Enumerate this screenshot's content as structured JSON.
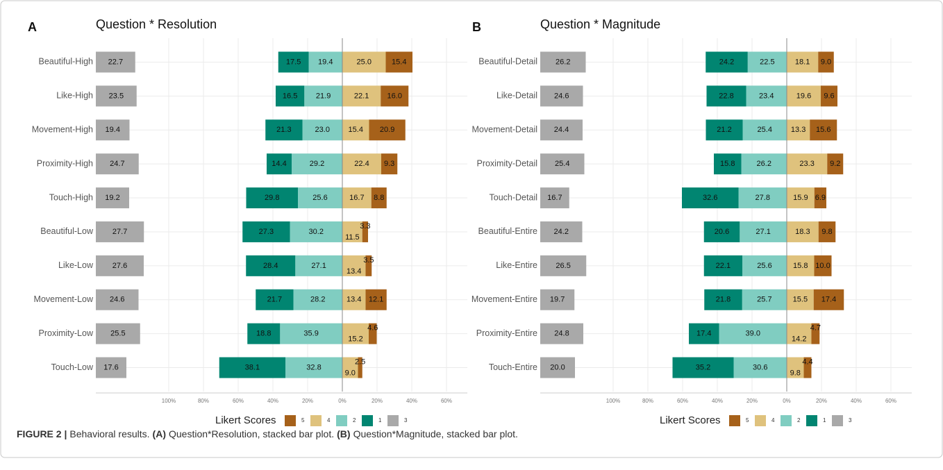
{
  "chart_data": [
    {
      "type": "diverging_bar",
      "panel": "A",
      "title": "Question * Resolution",
      "categories": [
        "Beautiful-High",
        "Like-High",
        "Movement-High",
        "Proximity-High",
        "Touch-High",
        "Beautiful-Low",
        "Like-Low",
        "Movement-Low",
        "Proximity-Low",
        "Touch-Low"
      ],
      "series": [
        {
          "name": "5",
          "color": "#a6611a",
          "values": [
            15.4,
            16.0,
            20.9,
            9.3,
            8.8,
            3.3,
            3.5,
            12.1,
            4.6,
            2.5
          ],
          "value_labels": [
            "15.4",
            "16.0",
            "20.9",
            "9.3",
            "8.8",
            "3.3",
            "3.5",
            "12.1",
            "4.6",
            "2.5"
          ]
        },
        {
          "name": "4",
          "color": "#dfc27d",
          "values": [
            25.0,
            22.1,
            15.4,
            22.4,
            16.7,
            11.5,
            13.4,
            13.4,
            15.2,
            9.0
          ],
          "value_labels": [
            "25.0",
            "22.1",
            "15.4",
            "22.4",
            "16.7",
            "11.5",
            "13.4",
            "13.4",
            "15.2",
            "9.0"
          ]
        },
        {
          "name": "2",
          "color": "#80cdc1",
          "values": [
            19.4,
            21.9,
            23.0,
            29.2,
            25.6,
            30.2,
            27.1,
            28.2,
            35.9,
            32.8
          ],
          "value_labels": [
            "19.4",
            "21.9",
            "23.0",
            "29.2",
            "25.6",
            "30.2",
            "27.1",
            "28.2",
            "35.9",
            "32.8"
          ]
        },
        {
          "name": "1",
          "color": "#018571",
          "values": [
            17.5,
            16.5,
            21.3,
            14.4,
            29.8,
            27.3,
            28.4,
            21.7,
            18.8,
            38.1
          ],
          "value_labels": [
            "17.5",
            "16.5",
            "21.3",
            "14.4",
            "29.8",
            "27.3",
            "28.4",
            "21.7",
            "18.8",
            "38.1"
          ]
        },
        {
          "name": "3",
          "color": "#a9a9a9",
          "values": [
            22.7,
            23.5,
            19.4,
            24.7,
            19.2,
            27.7,
            27.6,
            24.6,
            25.5,
            17.6
          ],
          "value_labels": [
            "22.7",
            "23.5",
            "19.4",
            "24.7",
            "19.2",
            "27.7",
            "27.6",
            "24.6",
            "25.5",
            "17.6"
          ]
        }
      ],
      "xlim": [
        -142,
        72
      ],
      "xticks": [
        {
          "value": -100,
          "label": "100%"
        },
        {
          "value": -80,
          "label": "80%"
        },
        {
          "value": -60,
          "label": "60%"
        },
        {
          "value": -40,
          "label": "40%"
        },
        {
          "value": -20,
          "label": "20%"
        },
        {
          "value": 0,
          "label": "0%"
        },
        {
          "value": 20,
          "label": "20%"
        },
        {
          "value": 40,
          "label": "40%"
        },
        {
          "value": 60,
          "label": "60%"
        }
      ],
      "legend_title": "Likert Scores",
      "grid": true
    },
    {
      "type": "diverging_bar",
      "panel": "B",
      "title": "Question * Magnitude",
      "categories": [
        "Beautiful-Detail",
        "Like-Detail",
        "Movement-Detail",
        "Proximity-Detail",
        "Touch-Detail",
        "Beautiful-Entire",
        "Like-Entire",
        "Movement-Entire",
        "Proximity-Entire",
        "Touch-Entire"
      ],
      "series": [
        {
          "name": "5",
          "color": "#a6611a",
          "values": [
            9.0,
            9.6,
            15.6,
            9.2,
            6.9,
            9.8,
            10.0,
            17.4,
            4.7,
            4.4
          ],
          "value_labels": [
            "9.0",
            "9.6",
            "15.6",
            "9.2",
            "6.9",
            "9.8",
            "10.0",
            "17.4",
            "4.7",
            "4.4"
          ]
        },
        {
          "name": "4",
          "color": "#dfc27d",
          "values": [
            18.1,
            19.6,
            13.3,
            23.3,
            15.9,
            18.3,
            15.8,
            15.5,
            14.2,
            9.8
          ],
          "value_labels": [
            "18.1",
            "19.6",
            "13.3",
            "23.3",
            "15.9",
            "18.3",
            "15.8",
            "15.5",
            "14.2",
            "9.8"
          ]
        },
        {
          "name": "2",
          "color": "#80cdc1",
          "values": [
            22.5,
            23.4,
            25.4,
            26.2,
            27.8,
            27.1,
            25.6,
            25.7,
            39.0,
            30.6
          ],
          "value_labels": [
            "22.5",
            "23.4",
            "25.4",
            "26.2",
            "27.8",
            "27.1",
            "25.6",
            "25.7",
            "39.0",
            "30.6"
          ]
        },
        {
          "name": "1",
          "color": "#018571",
          "values": [
            24.2,
            22.8,
            21.2,
            15.8,
            32.6,
            20.6,
            22.1,
            21.8,
            17.4,
            35.2
          ],
          "value_labels": [
            "24.2",
            "22.8",
            "21.2",
            "15.8",
            "32.6",
            "20.6",
            "22.1",
            "21.8",
            "17.4",
            "35.2"
          ]
        },
        {
          "name": "3",
          "color": "#a9a9a9",
          "values": [
            26.2,
            24.6,
            24.4,
            25.4,
            16.7,
            24.2,
            26.5,
            19.7,
            24.8,
            20.0
          ],
          "value_labels": [
            "26.2",
            "24.6",
            "24.4",
            "25.4",
            "16.7",
            "24.2",
            "26.5",
            "19.7",
            "24.8",
            "20.0"
          ]
        }
      ],
      "xlim": [
        -142,
        72
      ],
      "xticks": [
        {
          "value": -100,
          "label": "100%"
        },
        {
          "value": -80,
          "label": "80%"
        },
        {
          "value": -60,
          "label": "60%"
        },
        {
          "value": -40,
          "label": "40%"
        },
        {
          "value": -20,
          "label": "20%"
        },
        {
          "value": 0,
          "label": "0%"
        },
        {
          "value": 20,
          "label": "20%"
        },
        {
          "value": 40,
          "label": "40%"
        },
        {
          "value": 60,
          "label": "60%"
        }
      ],
      "legend_title": "Likert Scores",
      "grid": true
    }
  ],
  "caption": [
    {
      "text": "FIGURE 2 |",
      "bold": true
    },
    {
      "text": "Behavioral results.",
      "bold": false
    },
    {
      "text": "(A)",
      "bold": true
    },
    {
      "text": "Question*Resolution, stacked bar plot.",
      "bold": false
    },
    {
      "text": "(B)",
      "bold": true
    },
    {
      "text": "Question*Magnitude, stacked bar plot.",
      "bold": false
    }
  ]
}
